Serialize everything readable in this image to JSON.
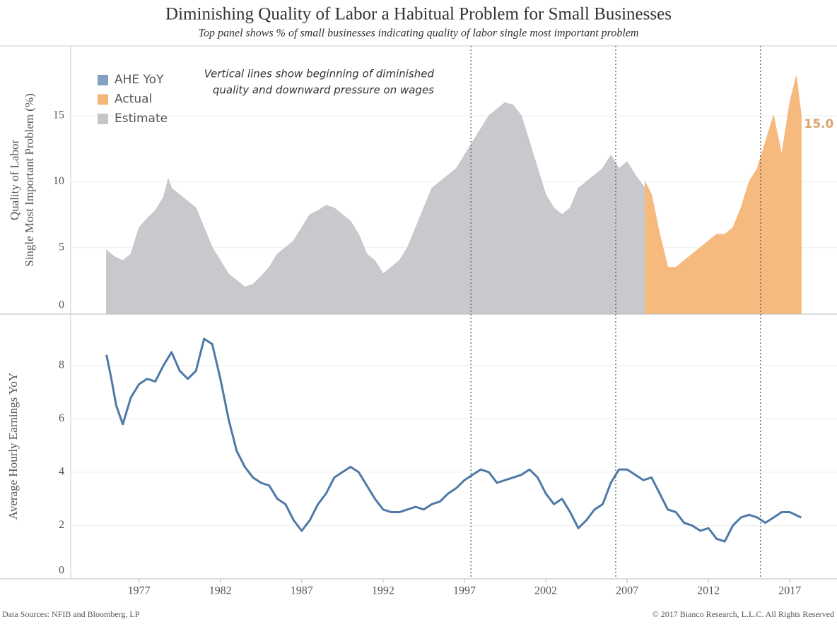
{
  "chart_data": [
    {
      "type": "area",
      "title": "Diminishing Quality of Labor a Habitual Problem for Small Businesses",
      "subtitle": "Top panel shows % of small businesses indicating quality of labor single most important problem",
      "ylabel": [
        "Quality of Labor",
        "Single Most Important Problem (%)"
      ],
      "annotation": [
        "Vertical lines show beginning of diminished",
        "quality and downward pressure on wages"
      ],
      "xlim": [
        1972.8,
        2019.9
      ],
      "ylim": [
        0,
        20.3
      ],
      "yticks": [
        0,
        5,
        10,
        15
      ],
      "grid": true,
      "vlines": [
        1997.4,
        2006.3,
        2015.2
      ],
      "series": [
        {
          "name": "Estimate",
          "color": "#c4c6ca",
          "x": [
            1975.0,
            1975.5,
            1976.0,
            1976.5,
            1977.0,
            1977.5,
            1978.0,
            1978.5,
            1978.8,
            1979.0,
            1979.5,
            1980.0,
            1980.5,
            1981.0,
            1981.5,
            1982.0,
            1982.5,
            1983.0,
            1983.5,
            1984.0,
            1984.5,
            1985.0,
            1985.5,
            1986.0,
            1986.5,
            1987.0,
            1987.5,
            1988.0,
            1988.5,
            1989.0,
            1989.5,
            1990.0,
            1990.5,
            1991.0,
            1991.5,
            1992.0,
            1992.5,
            1993.0,
            1993.5,
            1994.0,
            1994.5,
            1995.0,
            1995.5,
            1996.0,
            1996.5,
            1997.0,
            1997.5,
            1998.0,
            1998.5,
            1999.0,
            1999.5,
            2000.0,
            2000.5,
            2001.0,
            2001.5,
            2002.0,
            2002.5,
            2003.0,
            2003.5,
            2004.0,
            2004.5,
            2005.0,
            2005.5,
            2006.0,
            2006.5,
            2007.0,
            2007.5,
            2008.1
          ],
          "values": [
            4.8,
            4.3,
            4.0,
            4.5,
            6.5,
            7.2,
            7.8,
            8.8,
            10.2,
            9.5,
            9.0,
            8.5,
            8.0,
            6.5,
            5.0,
            4.0,
            3.0,
            2.5,
            2.0,
            2.2,
            2.8,
            3.5,
            4.5,
            5.0,
            5.5,
            6.5,
            7.5,
            7.8,
            8.2,
            8.0,
            7.5,
            7.0,
            6.0,
            4.5,
            4.0,
            3.0,
            3.5,
            4.0,
            5.0,
            6.5,
            8.0,
            9.5,
            10.0,
            10.5,
            11.0,
            12.0,
            13.0,
            14.0,
            15.0,
            15.5,
            16.0,
            15.8,
            15.0,
            13.0,
            11.0,
            9.0,
            8.0,
            7.5,
            8.0,
            9.5,
            10.0,
            10.5,
            11.0,
            12.0,
            11.0,
            11.5,
            10.5,
            9.5
          ]
        },
        {
          "name": "Actual",
          "color": "#f5b678",
          "x": [
            2008.1,
            2008.5,
            2009.0,
            2009.5,
            2010.0,
            2010.5,
            2011.0,
            2011.5,
            2012.0,
            2012.5,
            2013.0,
            2013.5,
            2014.0,
            2014.5,
            2015.0,
            2015.5,
            2016.0,
            2016.5,
            2017.0,
            2017.4,
            2017.7
          ],
          "values": [
            10.0,
            9.0,
            6.0,
            3.5,
            3.5,
            4.0,
            4.5,
            5.0,
            5.5,
            6.0,
            6.0,
            6.5,
            8.0,
            10.0,
            11.0,
            13.0,
            15.0,
            12.0,
            16.0,
            18.0,
            15.0
          ],
          "value_labels": [
            null,
            null,
            null,
            null,
            null,
            null,
            null,
            null,
            null,
            null,
            null,
            null,
            null,
            null,
            null,
            null,
            null,
            null,
            null,
            null,
            "15.0"
          ]
        }
      ]
    },
    {
      "type": "line",
      "ylabel": "Average Hourly Earnings YoY",
      "xlim": [
        1972.8,
        2019.9
      ],
      "ylim": [
        0,
        9.9
      ],
      "yticks": [
        0,
        2,
        4,
        6,
        8
      ],
      "xticks": [
        1977,
        1982,
        1987,
        1992,
        1997,
        2002,
        2007,
        2012,
        2017
      ],
      "grid": true,
      "series": [
        {
          "name": "AHE YoY",
          "color": "#4e79a7",
          "x": [
            1975.0,
            1975.3,
            1975.6,
            1976.0,
            1976.5,
            1977.0,
            1977.5,
            1978.0,
            1978.5,
            1979.0,
            1979.5,
            1980.0,
            1980.5,
            1981.0,
            1981.5,
            1982.0,
            1982.5,
            1983.0,
            1983.5,
            1984.0,
            1984.5,
            1985.0,
            1985.5,
            1986.0,
            1986.5,
            1987.0,
            1987.5,
            1988.0,
            1988.5,
            1989.0,
            1989.5,
            1990.0,
            1990.5,
            1991.0,
            1991.5,
            1992.0,
            1992.5,
            1993.0,
            1993.5,
            1994.0,
            1994.5,
            1995.0,
            1995.5,
            1996.0,
            1996.5,
            1997.0,
            1997.5,
            1998.0,
            1998.5,
            1999.0,
            1999.5,
            2000.0,
            2000.5,
            2001.0,
            2001.5,
            2002.0,
            2002.5,
            2003.0,
            2003.5,
            2004.0,
            2004.5,
            2005.0,
            2005.5,
            2006.0,
            2006.5,
            2007.0,
            2007.5,
            2008.0,
            2008.5,
            2009.0,
            2009.5,
            2010.0,
            2010.5,
            2011.0,
            2011.5,
            2012.0,
            2012.5,
            2013.0,
            2013.5,
            2014.0,
            2014.5,
            2015.0,
            2015.5,
            2016.0,
            2016.5,
            2017.0,
            2017.7
          ],
          "values": [
            8.4,
            7.5,
            6.5,
            5.8,
            6.8,
            7.3,
            7.5,
            7.4,
            8.0,
            8.5,
            7.8,
            7.5,
            7.8,
            9.0,
            8.8,
            7.5,
            6.0,
            4.8,
            4.2,
            3.8,
            3.6,
            3.5,
            3.0,
            2.8,
            2.2,
            1.8,
            2.2,
            2.8,
            3.2,
            3.8,
            4.0,
            4.2,
            4.0,
            3.5,
            3.0,
            2.6,
            2.5,
            2.5,
            2.6,
            2.7,
            2.6,
            2.8,
            2.9,
            3.2,
            3.4,
            3.7,
            3.9,
            4.1,
            4.0,
            3.6,
            3.7,
            3.8,
            3.9,
            4.1,
            3.8,
            3.2,
            2.8,
            3.0,
            2.5,
            1.9,
            2.2,
            2.6,
            2.8,
            3.6,
            4.1,
            4.1,
            3.9,
            3.7,
            3.8,
            3.2,
            2.6,
            2.5,
            2.1,
            2.0,
            1.8,
            1.9,
            1.5,
            1.4,
            2.0,
            2.3,
            2.4,
            2.3,
            2.1,
            2.3,
            2.5,
            2.5,
            2.3
          ]
        }
      ]
    }
  ],
  "footer": {
    "source": "Data Sources: NFIB and Bloomberg, LP",
    "copyright": "© 2017 Bianco Research, L.L.C. All Rights Reserved"
  }
}
